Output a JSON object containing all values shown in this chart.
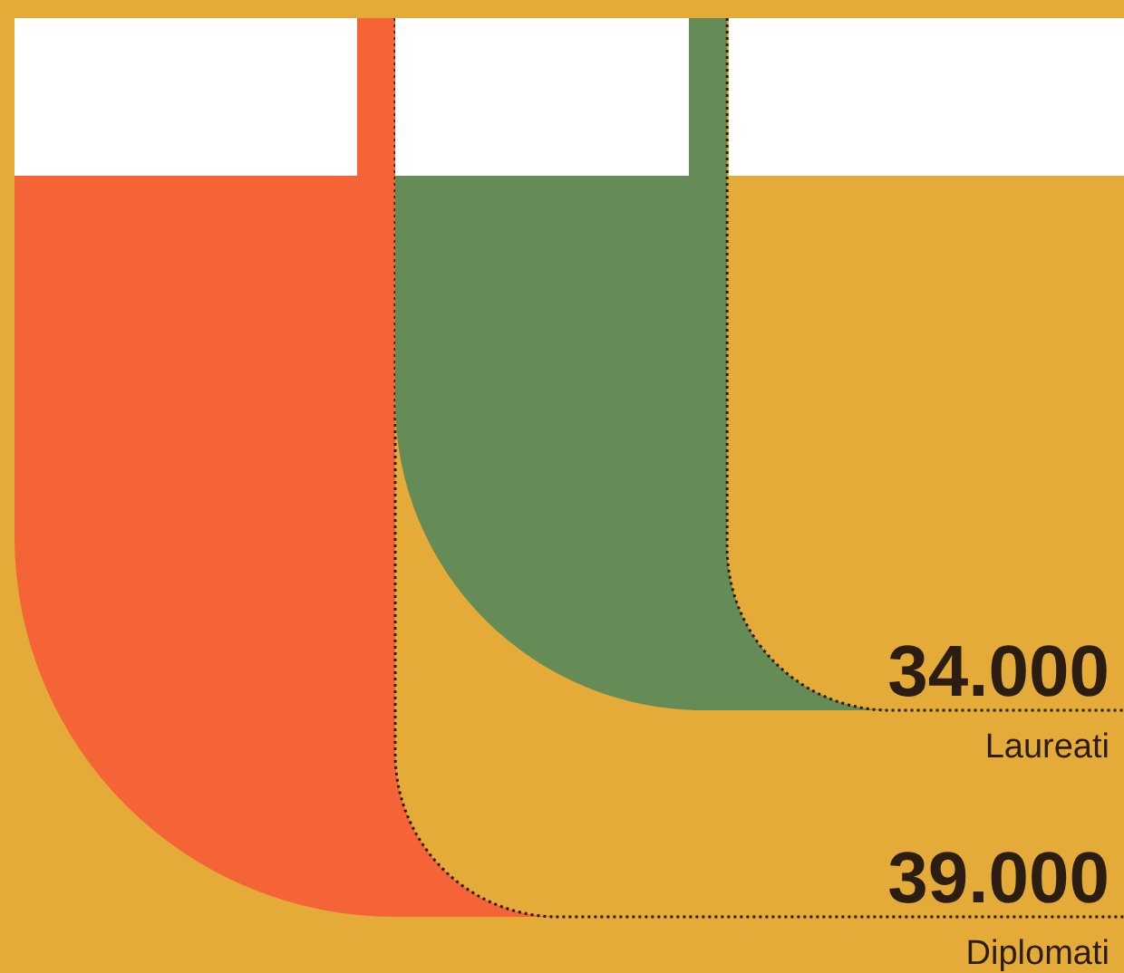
{
  "chart_data": {
    "type": "other",
    "categories": [
      "Laureati",
      "Diplomati"
    ],
    "values": [
      34000,
      39000
    ],
    "value_labels": [
      "34.000",
      "39.000"
    ],
    "colors": [
      "#658b57",
      "#f46436"
    ]
  }
}
